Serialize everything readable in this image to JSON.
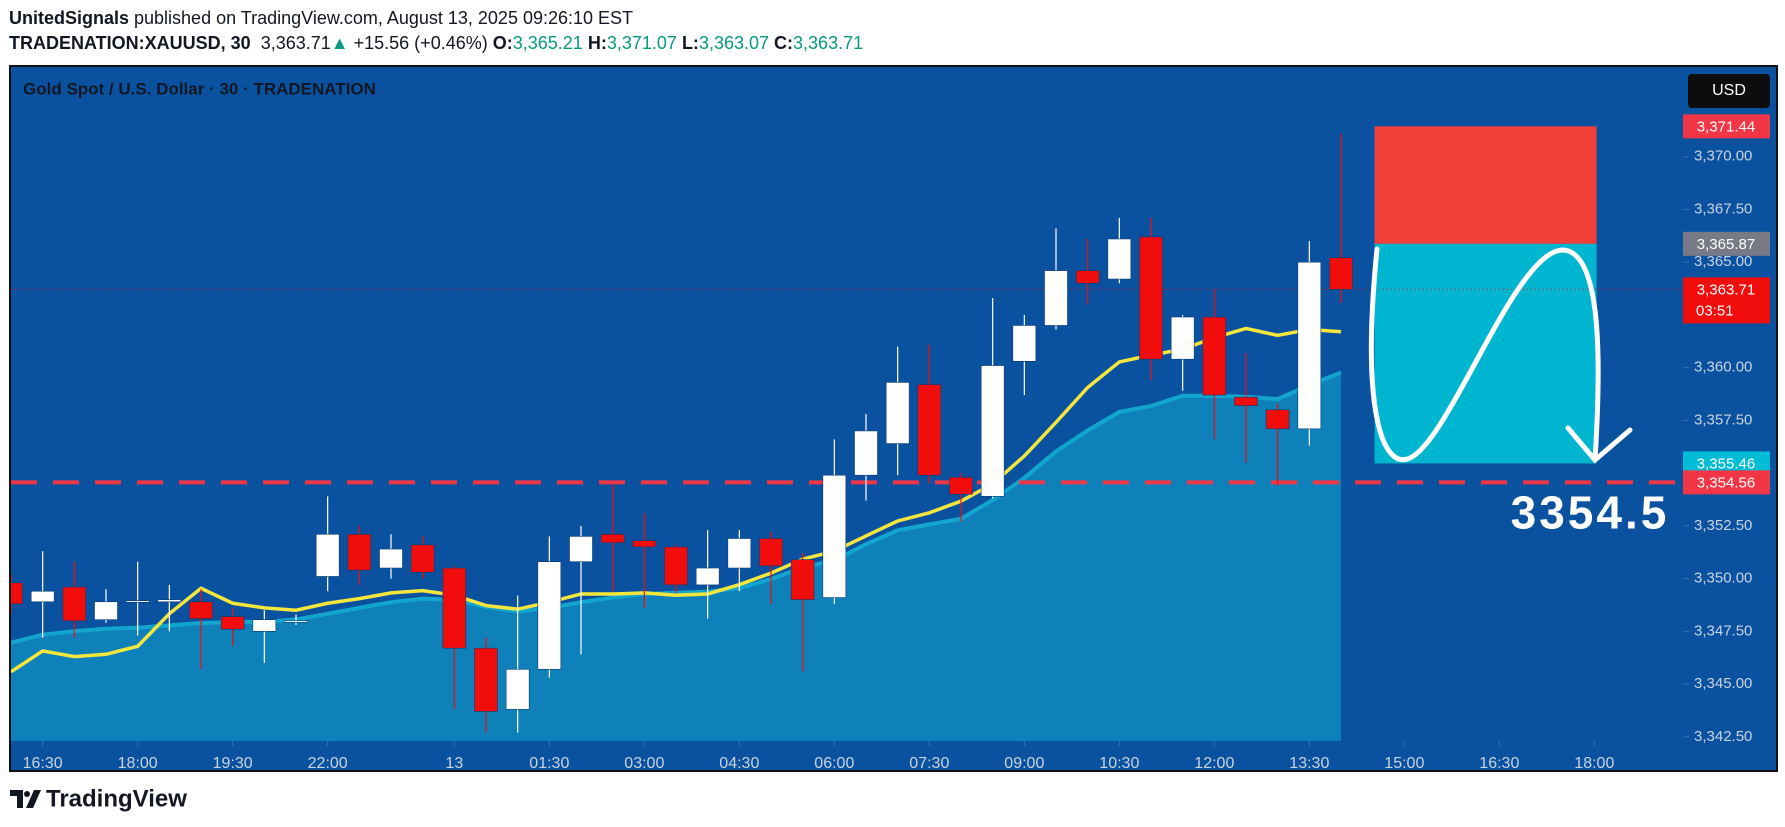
{
  "header": {
    "author": "UnitedSignals",
    "published": " published on TradingView.com, August 13, 2025 09:26:10 EST",
    "symbol": "TRADENATION:XAUUSD, 30",
    "last": "3,363.71",
    "arrow": "▲",
    "change": "+15.56 (+0.46%)",
    "o_label": "O:",
    "o": "3,365.21",
    "h_label": "H:",
    "h": "3,371.07",
    "l_label": "L:",
    "l": "3,363.07",
    "c_label": "C:",
    "c": "3,363.71"
  },
  "footer": {
    "brand": "TradingView"
  },
  "chart_data": {
    "type": "candlestick",
    "title": "Gold Spot / U.S. Dollar · 30 · TRADENATION",
    "currency": "USD",
    "x": [
      0,
      1,
      2,
      3,
      4,
      5,
      6,
      7,
      8,
      9,
      10,
      11,
      12,
      13,
      14,
      15,
      16,
      17,
      18,
      19,
      20,
      21,
      22,
      23,
      24,
      25,
      26,
      27,
      28,
      29,
      30,
      31,
      32,
      33,
      34,
      35,
      36,
      37,
      38,
      39,
      40,
      41,
      42
    ],
    "open": [
      3349.8,
      3348.9,
      3349.6,
      3348.05,
      3348.9,
      3348.9,
      3348.9,
      3348.2,
      3347.5,
      3348.0,
      3350.1,
      3352.1,
      3350.5,
      3351.6,
      3350.5,
      3346.7,
      3343.8,
      3345.7,
      3350.8,
      3352.1,
      3351.8,
      3351.5,
      3349.7,
      3350.5,
      3351.9,
      3350.9,
      3349.1,
      3354.9,
      3356.4,
      3359.2,
      3354.8,
      3353.9,
      3360.3,
      3362.0,
      3364.6,
      3364.2,
      3366.2,
      3360.4,
      3362.4,
      3358.6,
      3358.0,
      3357.1,
      3365.21
    ],
    "high": [
      3350.2,
      3351.3,
      3350.8,
      3349.5,
      3350.8,
      3349.7,
      3349.5,
      3348.6,
      3348.5,
      3348.3,
      3353.9,
      3352.5,
      3352.1,
      3352.0,
      3350.6,
      3347.2,
      3349.2,
      3352.0,
      3352.5,
      3354.4,
      3353.1,
      3351.6,
      3352.3,
      3352.3,
      3352.2,
      3351.2,
      3356.6,
      3357.8,
      3361.0,
      3361.1,
      3355.0,
      3363.3,
      3362.5,
      3366.6,
      3366.1,
      3367.1,
      3367.1,
      3362.5,
      3363.7,
      3360.7,
      3358.3,
      3366.0,
      3371.07
    ],
    "low": [
      3348.3,
      3347.2,
      3347.2,
      3347.9,
      3347.3,
      3347.5,
      3345.7,
      3346.8,
      3346.0,
      3347.8,
      3349.4,
      3349.7,
      3350.0,
      3350.0,
      3343.8,
      3342.7,
      3342.7,
      3345.3,
      3346.4,
      3349.4,
      3348.6,
      3349.3,
      3348.1,
      3349.4,
      3348.8,
      3345.6,
      3348.8,
      3353.7,
      3354.9,
      3354.5,
      3352.7,
      3353.8,
      3358.7,
      3361.8,
      3363.0,
      3364.0,
      3359.4,
      3358.9,
      3356.6,
      3355.5,
      3354.4,
      3356.3,
      3363.07
    ],
    "close": [
      3348.8,
      3349.4,
      3348.0,
      3348.9,
      3348.95,
      3349.0,
      3348.1,
      3347.6,
      3348.05,
      3348.0,
      3352.1,
      3350.4,
      3351.4,
      3350.3,
      3346.7,
      3343.7,
      3345.7,
      3350.8,
      3352.0,
      3351.7,
      3351.5,
      3349.7,
      3350.5,
      3351.9,
      3350.6,
      3349.0,
      3354.9,
      3357.0,
      3359.3,
      3354.9,
      3354.0,
      3360.1,
      3362.0,
      3364.6,
      3364.0,
      3366.1,
      3360.4,
      3362.4,
      3358.7,
      3358.2,
      3357.1,
      3365.0,
      3363.71
    ],
    "up_color": "#ffffff",
    "down_color": "#f20d0d",
    "indicators": [
      {
        "kind": "area",
        "color": "#12a6cf",
        "values": [
          3346.96,
          3347.34,
          3347.51,
          3347.62,
          3347.67,
          3347.78,
          3347.89,
          3347.95,
          3347.95,
          3348.06,
          3348.33,
          3348.61,
          3348.88,
          3349.05,
          3348.99,
          3348.66,
          3348.44,
          3348.61,
          3348.88,
          3349.1,
          3349.27,
          3349.32,
          3349.38,
          3349.54,
          3349.98,
          3350.53,
          3350.86,
          3351.63,
          3352.29,
          3352.57,
          3352.84,
          3353.72,
          3354.77,
          3356.03,
          3357.02,
          3357.9,
          3358.18,
          3358.67,
          3358.67,
          3358.62,
          3358.51,
          3359.17,
          3359.77
        ]
      },
      {
        "kind": "line",
        "color": "#f5e63c",
        "values": [
          3345.58,
          3346.57,
          3346.3,
          3346.41,
          3346.79,
          3348.33,
          3349.54,
          3348.83,
          3348.61,
          3348.5,
          3348.83,
          3349.05,
          3349.32,
          3349.43,
          3349.21,
          3348.72,
          3348.55,
          3348.88,
          3349.27,
          3349.27,
          3349.32,
          3349.21,
          3349.27,
          3349.71,
          3350.26,
          3350.92,
          3351.3,
          3352.02,
          3352.73,
          3353.12,
          3353.67,
          3354.49,
          3355.81,
          3357.41,
          3359.06,
          3360.27,
          3360.6,
          3360.87,
          3361.42,
          3361.86,
          3361.53,
          3361.81,
          3361.7
        ]
      }
    ],
    "xlim": [
      0,
      52.8
    ],
    "ylim": [
      3342.3,
      3374.3
    ],
    "yticks": [
      {
        "value": 3342.5,
        "label": "3,342.50"
      },
      {
        "value": 3345,
        "label": "3,345.00"
      },
      {
        "value": 3347.5,
        "label": "3,347.50"
      },
      {
        "value": 3350,
        "label": "3,350.00"
      },
      {
        "value": 3352.5,
        "label": "3,352.50"
      },
      {
        "value": 3357.5,
        "label": "3,357.50"
      },
      {
        "value": 3360,
        "label": "3,360.00"
      },
      {
        "value": 3365,
        "label": "3,365.00"
      },
      {
        "value": 3367.5,
        "label": "3,367.50"
      },
      {
        "value": 3370,
        "label": "3,370.00"
      }
    ],
    "xticks": [
      {
        "value": 1,
        "label": "16:30"
      },
      {
        "value": 4,
        "label": "18:00"
      },
      {
        "value": 7,
        "label": "19:30"
      },
      {
        "value": 10,
        "label": "22:00"
      },
      {
        "value": 14,
        "label": "13"
      },
      {
        "value": 17,
        "label": "01:30"
      },
      {
        "value": 20,
        "label": "03:00"
      },
      {
        "value": 23,
        "label": "04:30"
      },
      {
        "value": 26,
        "label": "06:00"
      },
      {
        "value": 29,
        "label": "07:30"
      },
      {
        "value": 32,
        "label": "09:00"
      },
      {
        "value": 35,
        "label": "10:30"
      },
      {
        "value": 38,
        "label": "12:00"
      },
      {
        "value": 41,
        "label": "13:30"
      },
      {
        "value": 44,
        "label": "15:00"
      },
      {
        "value": 47,
        "label": "16:30"
      },
      {
        "value": 50,
        "label": "18:00"
      }
    ],
    "price_labels": [
      {
        "value": 3371.44,
        "label": "3,371.44",
        "color": "#f23645"
      },
      {
        "value": 3365.87,
        "label": "3,365.87",
        "color": "#787b86"
      },
      {
        "value": 3363.71,
        "label": "3,363.71",
        "color": "#f20d0d"
      },
      {
        "value": 3355.46,
        "label": "3,355.46",
        "color": "#00bcd4"
      },
      {
        "value": 3354.56,
        "label": "3,354.56",
        "color": "#f23645"
      }
    ],
    "countdown": "03:51",
    "position": {
      "x_start": 43.06,
      "x_end": 50.07,
      "stop": 3371.44,
      "entry": 3365.87,
      "target": 3355.46,
      "stop_color": "#f23f3a",
      "target_color": "#00b5d0"
    },
    "annotation": "3354.5"
  }
}
